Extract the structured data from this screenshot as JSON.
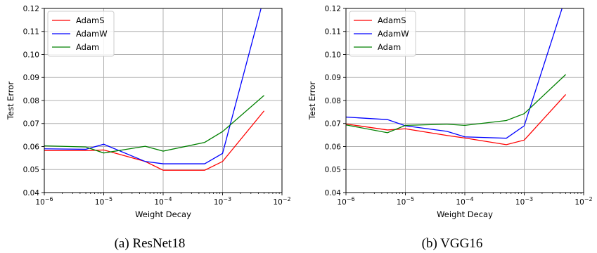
{
  "chart_data": [
    {
      "type": "line",
      "caption": "(a)  ResNet18",
      "xlabel": "Weight Decay",
      "ylabel": "Test Error",
      "xscale": "log",
      "xlim": [
        1e-06,
        0.01
      ],
      "ylim": [
        0.04,
        0.12
      ],
      "xticks": [
        {
          "value": 1e-06,
          "label": "10",
          "exp": "−6"
        },
        {
          "value": 1e-05,
          "label": "10",
          "exp": "−5"
        },
        {
          "value": 0.0001,
          "label": "10",
          "exp": "−4"
        },
        {
          "value": 0.001,
          "label": "10",
          "exp": "−3"
        },
        {
          "value": 0.01,
          "label": "10",
          "exp": "−2"
        }
      ],
      "yticks": [
        {
          "value": 0.04,
          "label": "0.04"
        },
        {
          "value": 0.05,
          "label": "0.05"
        },
        {
          "value": 0.06,
          "label": "0.06"
        },
        {
          "value": 0.07,
          "label": "0.07"
        },
        {
          "value": 0.08,
          "label": "0.08"
        },
        {
          "value": 0.09,
          "label": "0.09"
        },
        {
          "value": 0.1,
          "label": "0.10"
        },
        {
          "value": 0.11,
          "label": "0.11"
        },
        {
          "value": 0.12,
          "label": "0.12"
        }
      ],
      "grid": true,
      "legend_position": "top-left",
      "series": [
        {
          "name": "AdamS",
          "color": "#ff0000",
          "x": [
            1e-06,
            5e-06,
            1e-05,
            5e-05,
            0.0001,
            0.0005,
            0.001,
            0.005
          ],
          "y": [
            0.0582,
            0.0582,
            0.0585,
            0.0535,
            0.0497,
            0.0497,
            0.0535,
            0.0755
          ]
        },
        {
          "name": "AdamW",
          "color": "#0000ff",
          "x": [
            1e-06,
            5e-06,
            1e-05,
            5e-05,
            0.0001,
            0.0005,
            0.001,
            0.005
          ],
          "y": [
            0.059,
            0.0588,
            0.061,
            0.0535,
            0.0525,
            0.0525,
            0.057,
            0.125
          ]
        },
        {
          "name": "Adam",
          "color": "#008000",
          "x": [
            1e-06,
            5e-06,
            1e-05,
            5e-05,
            0.0001,
            0.0005,
            0.001,
            0.005
          ],
          "y": [
            0.0603,
            0.0598,
            0.0572,
            0.0601,
            0.058,
            0.0618,
            0.0665,
            0.0822
          ]
        }
      ]
    },
    {
      "type": "line",
      "caption": "(b)  VGG16",
      "xlabel": "Weight Decay",
      "ylabel": "Test Error",
      "xscale": "log",
      "xlim": [
        1e-06,
        0.01
      ],
      "ylim": [
        0.04,
        0.12
      ],
      "xticks": [
        {
          "value": 1e-06,
          "label": "10",
          "exp": "−6"
        },
        {
          "value": 1e-05,
          "label": "10",
          "exp": "−5"
        },
        {
          "value": 0.0001,
          "label": "10",
          "exp": "−4"
        },
        {
          "value": 0.001,
          "label": "10",
          "exp": "−3"
        },
        {
          "value": 0.01,
          "label": "10",
          "exp": "−2"
        }
      ],
      "yticks": [
        {
          "value": 0.04,
          "label": "0.04"
        },
        {
          "value": 0.05,
          "label": "0.05"
        },
        {
          "value": 0.06,
          "label": "0.06"
        },
        {
          "value": 0.07,
          "label": "0.07"
        },
        {
          "value": 0.08,
          "label": "0.08"
        },
        {
          "value": 0.09,
          "label": "0.09"
        },
        {
          "value": 0.1,
          "label": "0.10"
        },
        {
          "value": 0.11,
          "label": "0.11"
        },
        {
          "value": 0.12,
          "label": "0.12"
        }
      ],
      "grid": true,
      "legend_position": "top-left",
      "series": [
        {
          "name": "AdamS",
          "color": "#ff0000",
          "x": [
            1e-06,
            5e-06,
            1e-05,
            5e-05,
            0.0001,
            0.0005,
            0.001,
            0.005
          ],
          "y": [
            0.0698,
            0.0672,
            0.0677,
            0.0648,
            0.0637,
            0.0608,
            0.0628,
            0.0826
          ]
        },
        {
          "name": "AdamW",
          "color": "#0000ff",
          "x": [
            1e-06,
            5e-06,
            1e-05,
            5e-05,
            0.0001,
            0.0005,
            0.001,
            0.005
          ],
          "y": [
            0.0728,
            0.0717,
            0.069,
            0.0666,
            0.0642,
            0.0636,
            0.069,
            0.125
          ]
        },
        {
          "name": "Adam",
          "color": "#008000",
          "x": [
            1e-06,
            5e-06,
            1e-05,
            5e-05,
            0.0001,
            0.0005,
            0.001,
            0.005
          ],
          "y": [
            0.0694,
            0.066,
            0.0692,
            0.0697,
            0.0692,
            0.0713,
            0.0743,
            0.0913
          ]
        }
      ]
    }
  ]
}
